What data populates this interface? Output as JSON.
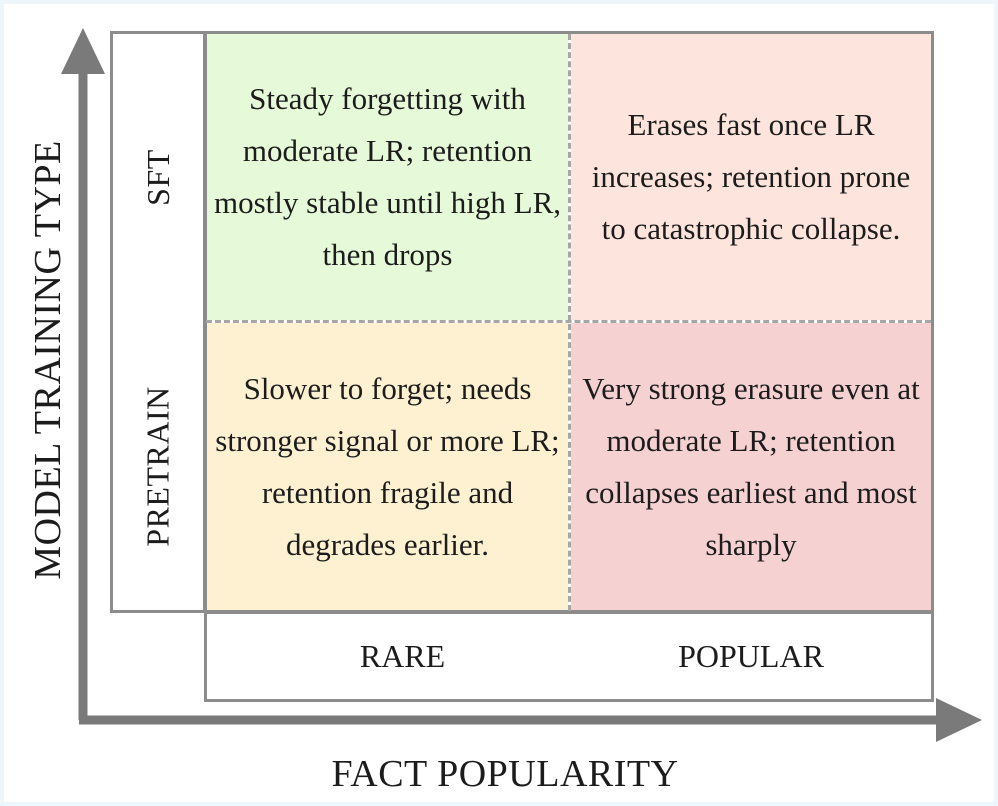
{
  "axes": {
    "x_title": "FACT POPULARITY",
    "y_title": "MODEL TRAINING TYPE"
  },
  "columns": [
    "RARE",
    "POPULAR"
  ],
  "rows": [
    "SFT",
    "PRETRAIN"
  ],
  "cells": {
    "sft_rare": "Steady forgetting with moderate LR; retention mostly stable until high LR, then drops",
    "sft_popular": "Erases fast once LR increases; retention prone to catastrophic collapse.",
    "pretrain_rare": "Slower to forget; needs stronger signal or more LR; retention fragile and degrades earlier.",
    "pretrain_popular": "Very strong erasure even at moderate LR; retention collapses earliest and most sharply"
  },
  "colors": {
    "sft_rare": "#e6f9d8",
    "sft_popular": "#fde4dc",
    "pretrain_rare": "#fdf1d2",
    "pretrain_popular": "#f6d1d2",
    "axis": "#7a7a7a",
    "border": "#8c8c8c",
    "background": "#ecf6fb"
  }
}
